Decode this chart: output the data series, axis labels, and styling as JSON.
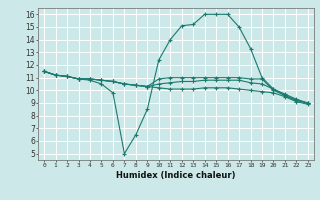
{
  "xlabel": "Humidex (Indice chaleur)",
  "ylabel": "",
  "bg_color": "#cce8e8",
  "grid_color": "#ffffff",
  "line_color": "#1a7a6e",
  "xlim": [
    -0.5,
    23.5
  ],
  "ylim": [
    4.5,
    16.5
  ],
  "xticks": [
    0,
    1,
    2,
    3,
    4,
    5,
    6,
    7,
    8,
    9,
    10,
    11,
    12,
    13,
    14,
    15,
    16,
    17,
    18,
    19,
    20,
    21,
    22,
    23
  ],
  "yticks": [
    5,
    6,
    7,
    8,
    9,
    10,
    11,
    12,
    13,
    14,
    15,
    16
  ],
  "lines": [
    {
      "x": [
        0,
        1,
        2,
        3,
        4,
        5,
        6,
        7,
        8,
        9,
        10,
        11,
        12,
        13,
        14,
        15,
        16,
        17,
        18,
        19,
        20,
        21,
        22,
        23
      ],
      "y": [
        11.5,
        11.2,
        11.1,
        10.9,
        10.8,
        10.5,
        9.8,
        5.0,
        6.5,
        8.5,
        12.4,
        14.0,
        15.1,
        15.2,
        16.0,
        16.0,
        16.0,
        15.0,
        13.3,
        11.0,
        10.1,
        9.6,
        9.2,
        9.0
      ]
    },
    {
      "x": [
        0,
        1,
        2,
        3,
        4,
        5,
        6,
        7,
        8,
        9,
        10,
        11,
        12,
        13,
        14,
        15,
        16,
        17,
        18,
        19,
        20,
        21,
        22,
        23
      ],
      "y": [
        11.5,
        11.2,
        11.1,
        10.9,
        10.9,
        10.8,
        10.7,
        10.5,
        10.4,
        10.3,
        10.9,
        11.0,
        11.0,
        11.0,
        11.0,
        11.0,
        11.0,
        11.0,
        10.9,
        10.9,
        10.0,
        9.6,
        9.2,
        9.0
      ]
    },
    {
      "x": [
        0,
        1,
        2,
        3,
        4,
        5,
        6,
        7,
        8,
        9,
        10,
        11,
        12,
        13,
        14,
        15,
        16,
        17,
        18,
        19,
        20,
        21,
        22,
        23
      ],
      "y": [
        11.5,
        11.2,
        11.1,
        10.9,
        10.9,
        10.8,
        10.7,
        10.5,
        10.4,
        10.3,
        10.5,
        10.6,
        10.7,
        10.7,
        10.8,
        10.8,
        10.8,
        10.8,
        10.6,
        10.5,
        10.1,
        9.7,
        9.3,
        9.0
      ]
    },
    {
      "x": [
        0,
        1,
        2,
        3,
        4,
        5,
        6,
        7,
        8,
        9,
        10,
        11,
        12,
        13,
        14,
        15,
        16,
        17,
        18,
        19,
        20,
        21,
        22,
        23
      ],
      "y": [
        11.5,
        11.2,
        11.1,
        10.9,
        10.9,
        10.8,
        10.7,
        10.5,
        10.4,
        10.3,
        10.2,
        10.1,
        10.1,
        10.1,
        10.2,
        10.2,
        10.2,
        10.1,
        10.0,
        9.9,
        9.8,
        9.5,
        9.1,
        8.9
      ]
    }
  ]
}
